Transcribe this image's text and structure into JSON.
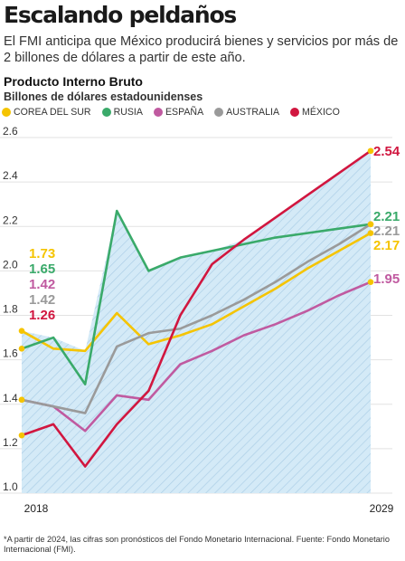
{
  "header": {
    "title": "Escalando peldaños",
    "subtitle": "El FMI anticipa que México producirá bienes y servicios por más de 2 billones de dólares a partir de este año."
  },
  "chart_data": {
    "type": "line",
    "title": "Producto Interno Bruto",
    "ylabel": "Billones de dólares estadounidenses",
    "xlabel": "",
    "ylim": [
      1.0,
      2.6
    ],
    "yticks": [
      "1.0",
      "1.2",
      "1.4",
      "1.6",
      "1.8",
      "2.0",
      "2.2",
      "2.4",
      "2.6"
    ],
    "xtick_labels": [
      "2018",
      "2029"
    ],
    "x": [
      2018,
      2019,
      2020,
      2021,
      2022,
      2023,
      2024,
      2025,
      2026,
      2027,
      2028,
      2029
    ],
    "series": [
      {
        "name": "COREA DEL SUR",
        "color": "#f5c400",
        "values": [
          1.73,
          1.65,
          1.64,
          1.81,
          1.67,
          1.71,
          1.76,
          1.84,
          1.92,
          2.01,
          2.09,
          2.17
        ],
        "start_label": "1.73",
        "end_label": "2.17"
      },
      {
        "name": "RUSIA",
        "color": "#3aaa6a",
        "values": [
          1.65,
          1.7,
          1.49,
          2.27,
          2.0,
          2.06,
          2.09,
          2.12,
          2.15,
          2.17,
          2.19,
          2.21
        ],
        "start_label": "1.65",
        "end_label": "2.21"
      },
      {
        "name": "ESPAÑA",
        "color": "#c05aa0",
        "values": [
          1.42,
          1.39,
          1.28,
          1.44,
          1.42,
          1.58,
          1.64,
          1.71,
          1.76,
          1.82,
          1.89,
          1.95
        ],
        "start_label": "1.42",
        "end_label": "1.95"
      },
      {
        "name": "AUSTRALIA",
        "color": "#9a9a9a",
        "values": [
          1.42,
          1.39,
          1.36,
          1.66,
          1.72,
          1.74,
          1.8,
          1.87,
          1.95,
          2.04,
          2.12,
          2.21
        ],
        "start_label": "1.42",
        "end_label": "2.21"
      },
      {
        "name": "MÉXICO",
        "color": "#d1163f",
        "values": [
          1.26,
          1.31,
          1.12,
          1.31,
          1.46,
          1.8,
          2.03,
          2.14,
          2.24,
          2.34,
          2.44,
          2.54
        ],
        "start_label": "1.26",
        "end_label": "2.54"
      }
    ],
    "colors": {
      "hatch_fill": "#d4eaf7",
      "hatch_line": "#aacde6",
      "grid": "#e2e2e2"
    }
  },
  "footnote": "*A partir de 2024, las cifras son pronósticos del Fondo Monetario Internacional. Fuente: Fondo Monetario Internacional (FMI)."
}
